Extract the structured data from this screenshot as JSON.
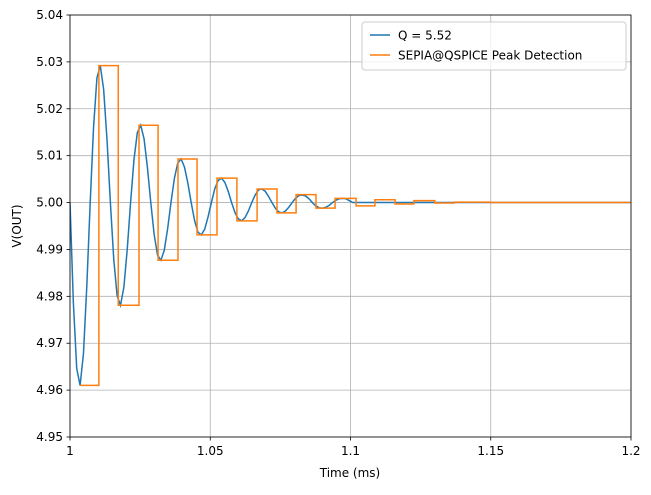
{
  "chart_data": {
    "type": "line",
    "grid": true,
    "legend": "upper right",
    "xlabel": "Time (ms)",
    "ylabel": "V(OUT)",
    "xlim": [
      1,
      1.2
    ],
    "xticks": [
      1,
      1.05,
      1.1,
      1.15,
      1.2
    ],
    "ylim": [
      4.95,
      5.04
    ],
    "yticks": [
      4.95,
      4.96,
      4.97,
      4.98,
      4.99,
      {
        "value": 5,
        "label": "5.00"
      },
      5.01,
      5.02,
      5.03,
      5.04
    ],
    "series": [
      {
        "name": "Q = 5.52",
        "color": "#1f77b4",
        "x": [
          1,
          1.0012,
          1.0024,
          1.0036,
          1.0048,
          1.006,
          1.0072,
          1.0084,
          1.0096,
          1.0108,
          1.012,
          1.0132,
          1.0144,
          1.0156,
          1.0168,
          1.018,
          1.0192,
          1.0204,
          1.0216,
          1.0228,
          1.024,
          1.0252,
          1.0264,
          1.0276,
          1.0288,
          1.03,
          1.0312,
          1.0324,
          1.0336,
          1.0348,
          1.036,
          1.0372,
          1.0384,
          1.0396,
          1.0408,
          1.042,
          1.0432,
          1.0444,
          1.0456,
          1.0468,
          1.048,
          1.0492,
          1.0504,
          1.0516,
          1.0528,
          1.054,
          1.0552,
          1.0564,
          1.0576,
          1.0588,
          1.06,
          1.0612,
          1.0624,
          1.0636,
          1.0648,
          1.066,
          1.0672,
          1.0684,
          1.0696,
          1.0708,
          1.072,
          1.0732,
          1.0744,
          1.0756,
          1.0768,
          1.078,
          1.0792,
          1.0804,
          1.0816,
          1.0828,
          1.084,
          1.0852,
          1.0864,
          1.0876,
          1.0888,
          1.09,
          1.0912,
          1.0924,
          1.0936,
          1.0948,
          1.096,
          1.0972,
          1.0984,
          1.0996,
          1.1008,
          1.2
        ],
        "values": [
          5.0,
          4.9786,
          4.9646,
          4.961,
          4.9678,
          4.9823,
          5.0,
          5.0161,
          5.0266,
          5.0292,
          5.0241,
          5.0133,
          5.0,
          4.9879,
          4.9801,
          4.9781,
          4.9819,
          4.99,
          5.0,
          5.0091,
          5.0149,
          5.0165,
          5.0136,
          5.0075,
          5.0,
          4.9932,
          4.9888,
          4.9877,
          4.9898,
          4.9944,
          5.0,
          5.0051,
          5.0084,
          5.0093,
          5.0076,
          5.0042,
          5.0,
          4.9962,
          4.9937,
          4.9931,
          4.9943,
          4.9969,
          5.0,
          5.0029,
          5.0047,
          5.0052,
          5.0043,
          5.0024,
          5.0,
          4.9979,
          4.9965,
          4.9961,
          4.9968,
          4.9982,
          5.0,
          5.0016,
          5.0027,
          5.0029,
          5.0024,
          5.0013,
          5.0,
          4.9988,
          4.998,
          4.9978,
          4.9982,
          4.999,
          5.0,
          5.0009,
          5.0015,
          5.0016,
          5.0014,
          5.0008,
          5.0,
          4.9993,
          4.9989,
          4.9988,
          4.999,
          4.9994,
          5.0,
          5.0005,
          5.0008,
          5.0009,
          5.0008,
          5.0004,
          5.0,
          5.0
        ]
      },
      {
        "name": "SEPIA@QSPICE Peak Detection",
        "color": "#ff7f0e",
        "drawstyle": "steps-post",
        "x": [
          1.0036,
          1.0103,
          1.0172,
          1.0246,
          1.0314,
          1.0385,
          1.0453,
          1.0524,
          1.0595,
          1.0667,
          1.0738,
          1.0806,
          1.0877,
          1.0945,
          1.102,
          1.1087,
          1.1159,
          1.1226,
          1.13,
          1.137,
          1.15,
          1.2
        ],
        "values": [
          4.961,
          5.0292,
          4.9781,
          5.0165,
          4.9877,
          5.0093,
          4.9931,
          5.0052,
          4.9961,
          5.0029,
          4.9978,
          5.0017,
          4.9988,
          5.0009,
          4.9993,
          5.0006,
          4.9997,
          5.0004,
          4.9999,
          5.0001,
          5.0,
          5.0
        ]
      }
    ]
  }
}
